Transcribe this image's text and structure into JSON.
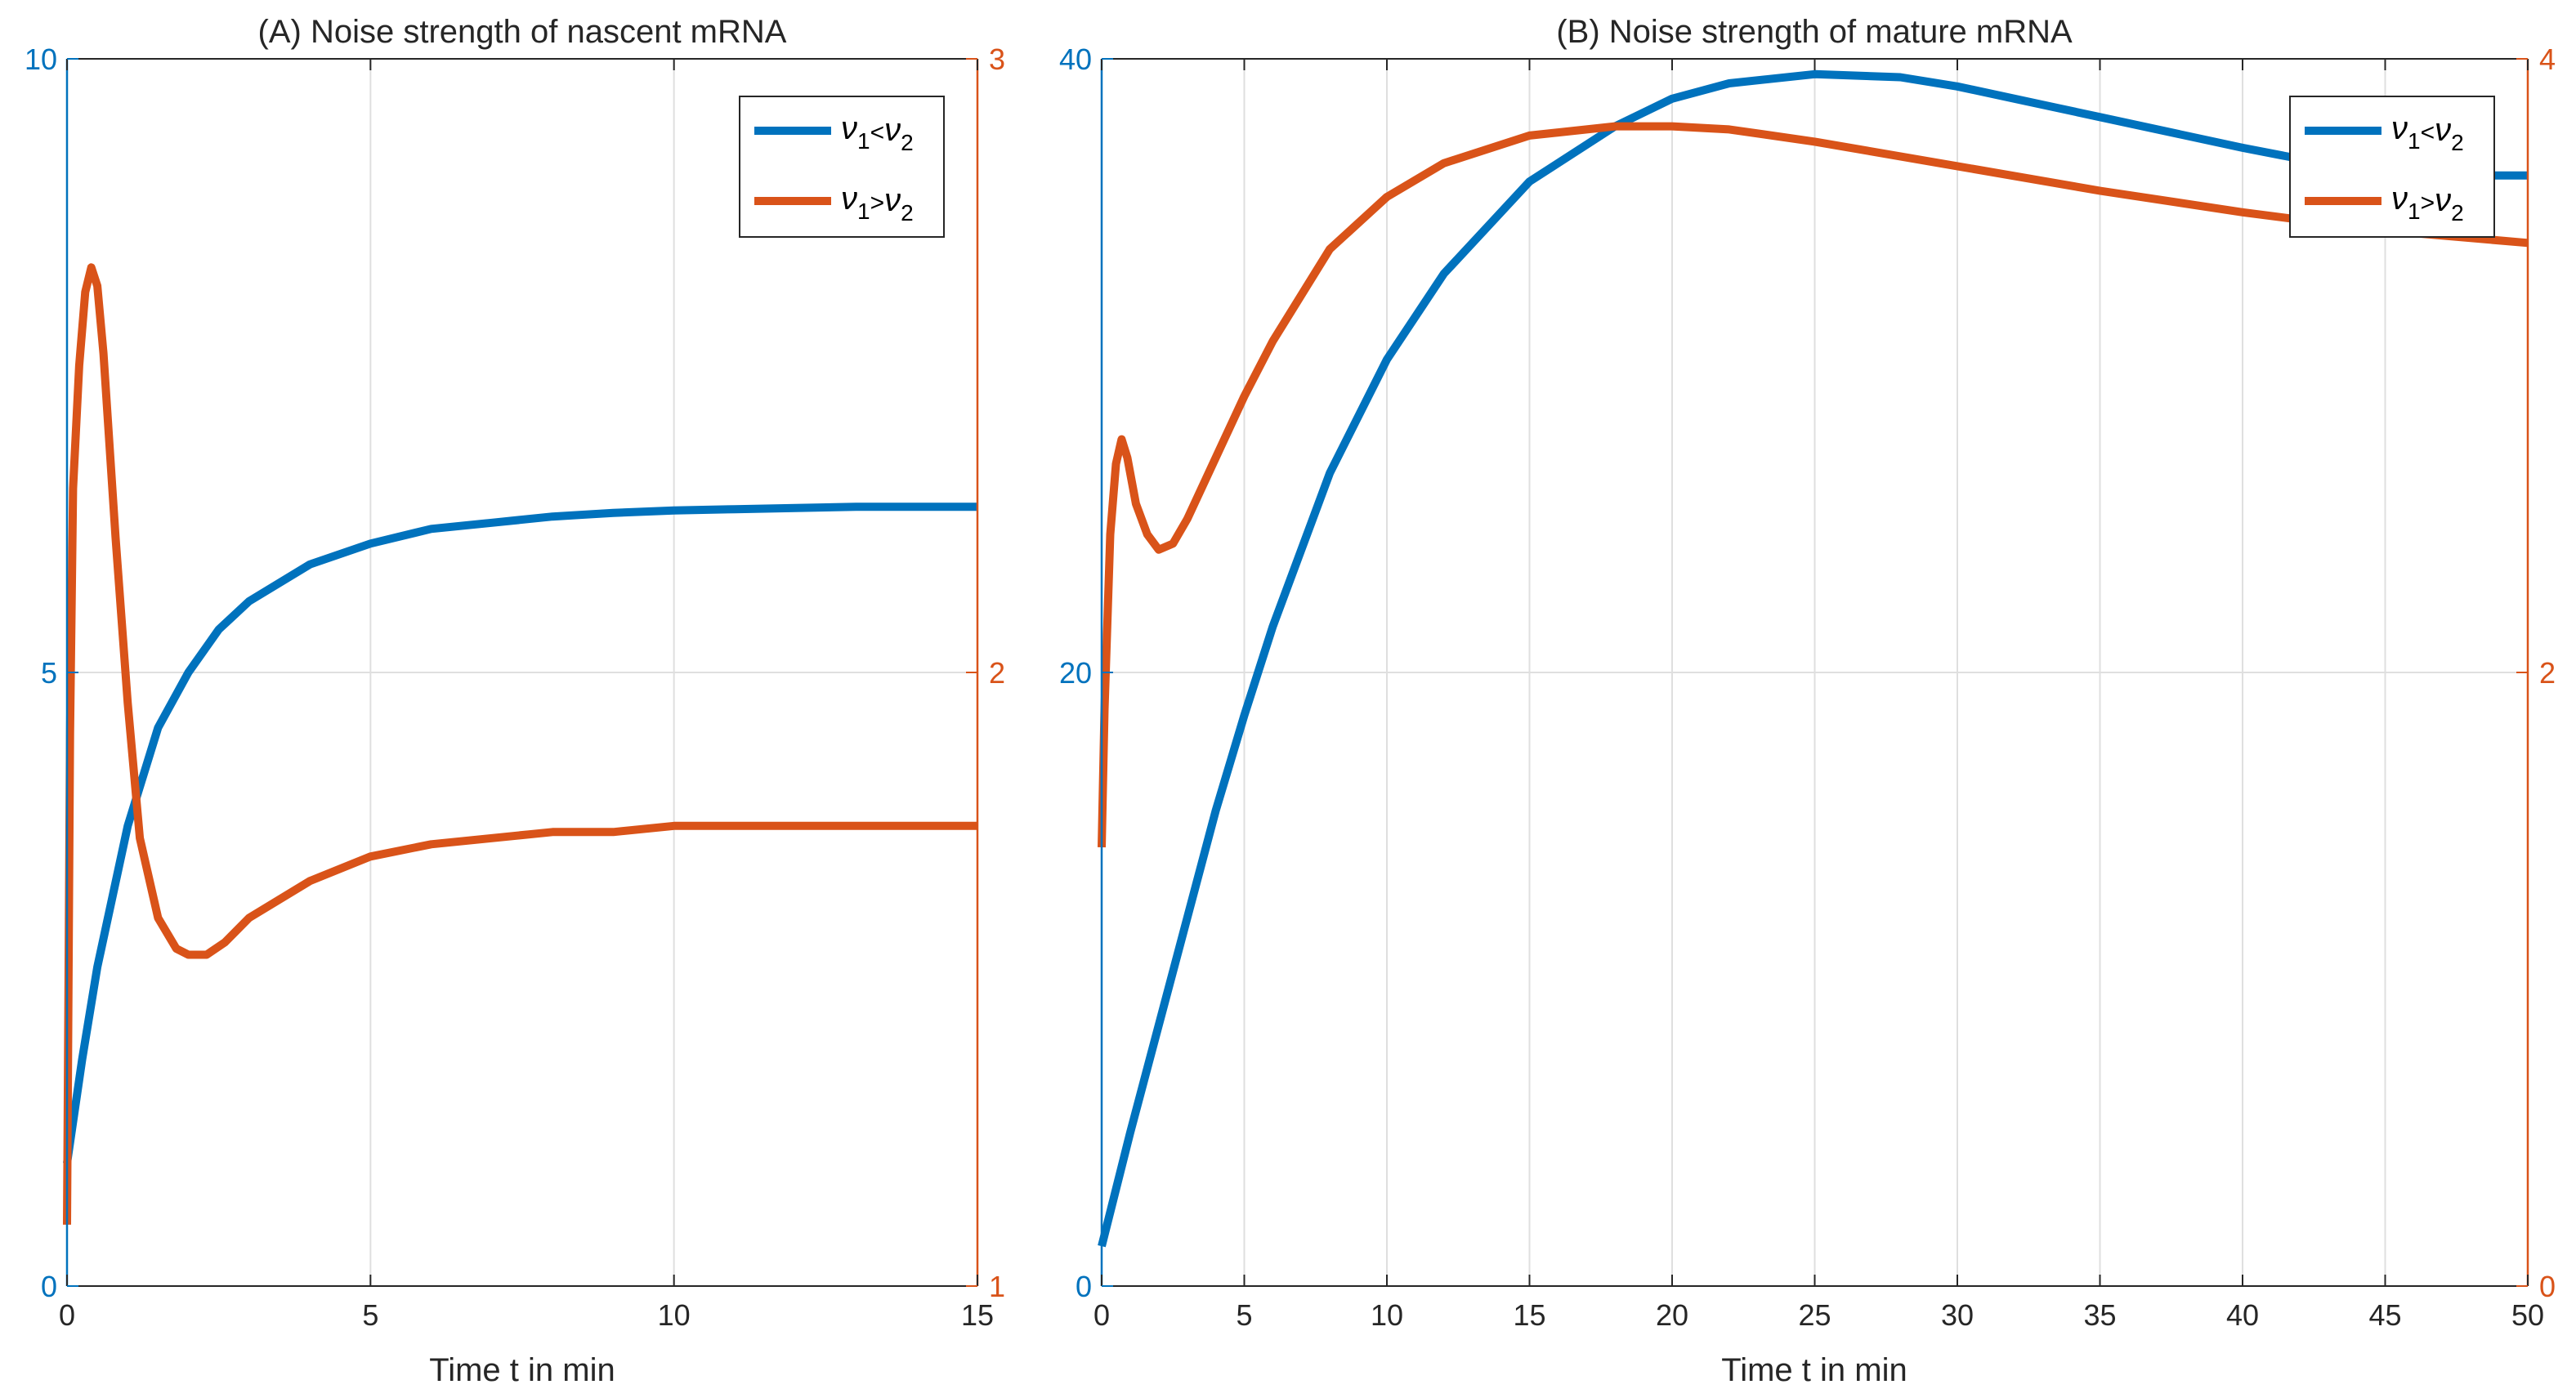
{
  "chart_data": [
    {
      "type": "line",
      "title": "(A) Noise strength of nascent mRNA",
      "xlabel": "Time t in min",
      "xlim": [
        0,
        15
      ],
      "xticks": [
        0,
        5,
        10,
        15
      ],
      "ylim_left": [
        0,
        10
      ],
      "yticks_left": [
        0,
        5,
        10
      ],
      "ylim_right": [
        1,
        3
      ],
      "yticks_right": [
        1,
        2,
        3
      ],
      "grid": true,
      "legend_position": "top-right",
      "legend": [
        "ν1<ν2",
        "ν1>ν2"
      ],
      "series": [
        {
          "name": "ν1<ν2",
          "axis": "left",
          "color": "#0072BD",
          "x": [
            0,
            0.25,
            0.5,
            1,
            1.5,
            2,
            2.5,
            3,
            4,
            5,
            6,
            7,
            8,
            9,
            10,
            11,
            12,
            13,
            14,
            15
          ],
          "y": [
            1.0,
            1.85,
            2.6,
            3.75,
            4.55,
            5.0,
            5.35,
            5.58,
            5.88,
            6.05,
            6.17,
            6.22,
            6.27,
            6.3,
            6.32,
            6.33,
            6.34,
            6.35,
            6.35,
            6.35
          ]
        },
        {
          "name": "ν1>ν2",
          "axis": "right",
          "color": "#D95319",
          "x": [
            0,
            0.05,
            0.1,
            0.2,
            0.3,
            0.4,
            0.5,
            0.6,
            0.8,
            1.0,
            1.2,
            1.5,
            1.8,
            2.0,
            2.3,
            2.6,
            3.0,
            4.0,
            5.0,
            6.0,
            7.0,
            8.0,
            9.0,
            10.0,
            12.0,
            15.0
          ],
          "y": [
            1.1,
            1.9,
            2.3,
            2.5,
            2.62,
            2.66,
            2.63,
            2.52,
            2.22,
            1.95,
            1.73,
            1.6,
            1.55,
            1.54,
            1.54,
            1.56,
            1.6,
            1.66,
            1.7,
            1.72,
            1.73,
            1.74,
            1.74,
            1.75,
            1.75,
            1.75
          ]
        }
      ]
    },
    {
      "type": "line",
      "title": "(B) Noise strength of mature mRNA",
      "xlabel": "Time t in min",
      "xlim": [
        0,
        50
      ],
      "xticks": [
        0,
        5,
        10,
        15,
        20,
        25,
        30,
        35,
        40,
        45,
        50
      ],
      "ylim_left": [
        0,
        40
      ],
      "yticks_left": [
        0,
        20,
        40
      ],
      "ylim_right": [
        0,
        4
      ],
      "yticks_right": [
        0,
        2,
        4
      ],
      "grid": true,
      "legend_position": "top-right",
      "legend": [
        "ν1<ν2",
        "ν1>ν2"
      ],
      "series": [
        {
          "name": "ν1<ν2",
          "axis": "left",
          "color": "#0072BD",
          "x": [
            0,
            1,
            2,
            3,
            4,
            5,
            6,
            8,
            10,
            12,
            15,
            18,
            20,
            22,
            25,
            28,
            30,
            35,
            40,
            45,
            50
          ],
          "y": [
            1.3,
            5.0,
            8.5,
            12.0,
            15.5,
            18.6,
            21.5,
            26.5,
            30.2,
            33.0,
            36.0,
            37.8,
            38.7,
            39.2,
            39.5,
            39.4,
            39.1,
            38.1,
            37.1,
            36.2,
            36.2
          ]
        },
        {
          "name": "ν1>ν2",
          "axis": "right",
          "color": "#D95319",
          "x": [
            0,
            0.1,
            0.3,
            0.5,
            0.7,
            0.9,
            1.2,
            1.6,
            2.0,
            2.5,
            3.0,
            4.0,
            5.0,
            6.0,
            8.0,
            10.0,
            12.0,
            15.0,
            18.0,
            20.0,
            22.0,
            25.0,
            30.0,
            35.0,
            40.0,
            45.0,
            50.0
          ],
          "y": [
            1.43,
            1.88,
            2.45,
            2.68,
            2.76,
            2.7,
            2.55,
            2.45,
            2.4,
            2.42,
            2.5,
            2.7,
            2.9,
            3.08,
            3.38,
            3.55,
            3.66,
            3.75,
            3.78,
            3.78,
            3.77,
            3.73,
            3.65,
            3.57,
            3.5,
            3.44,
            3.4
          ]
        }
      ]
    }
  ]
}
